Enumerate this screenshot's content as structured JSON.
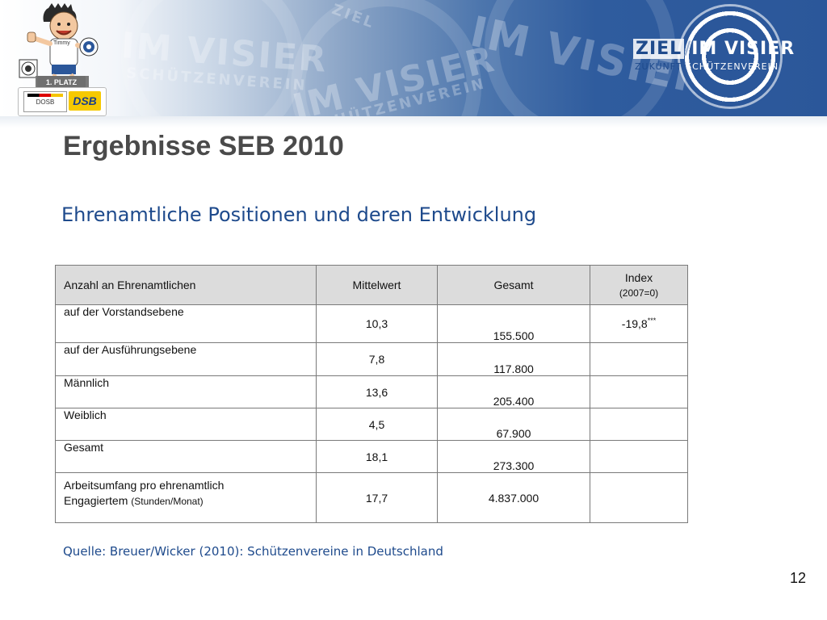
{
  "header": {
    "watermark_main": "IM VISIER",
    "watermark_sub": "SCHÜTZENVEREIN",
    "watermark_ziel": "ZIEL",
    "badge": {
      "shirt_name": "Timmy",
      "place_label": "1. PLATZ",
      "dosb_label": "DOSB",
      "dsb_label": "DSB"
    },
    "logo": {
      "word_ziel": "ZIEL",
      "word_im_visier": "IM VISIER",
      "word_zukunft": "ZUKUNFT",
      "word_schuetzenverein": "SCHÜTZENVEREIN"
    },
    "colors": {
      "brand_blue": "#2b579a",
      "title_gray": "#4a4a4a",
      "text_blue": "#1e4a8c"
    }
  },
  "page": {
    "title": "Ergebnisse SEB 2010",
    "subtitle": "Ehrenamtliche Positionen und deren Entwicklung",
    "source": "Quelle: Breuer/Wicker (2010): Schützenvereine in Deutschland",
    "page_number": "12"
  },
  "table": {
    "headers": {
      "col1": "Anzahl an Ehrenamtlichen",
      "col2": "Mittelwert",
      "col3": "Gesamt",
      "col4_main": "Index",
      "col4_sub": "(2007=0)"
    },
    "rows": [
      {
        "label": "auf der Vorstandsebene",
        "mittelwert": "10,3",
        "gesamt": "155.500",
        "index": "-19,8",
        "index_mark": "***"
      },
      {
        "label": "auf der Ausführungsebene",
        "mittelwert": "7,8",
        "gesamt": "117.800",
        "index": ""
      },
      {
        "label": "Männlich",
        "mittelwert": "13,6",
        "gesamt": "205.400",
        "index": ""
      },
      {
        "label": "Weiblich",
        "mittelwert": "4,5",
        "gesamt": "67.900",
        "index": ""
      },
      {
        "label": "Gesamt",
        "mittelwert": "18,1",
        "gesamt": "273.300",
        "index": ""
      },
      {
        "label_line1": "Arbeitsumfang pro ehrenamtlich",
        "label_line2": "Engagiertem",
        "label_unit": "(Stunden/Monat)",
        "mittelwert": "17,7",
        "gesamt": "4.837.000",
        "index": ""
      }
    ]
  }
}
